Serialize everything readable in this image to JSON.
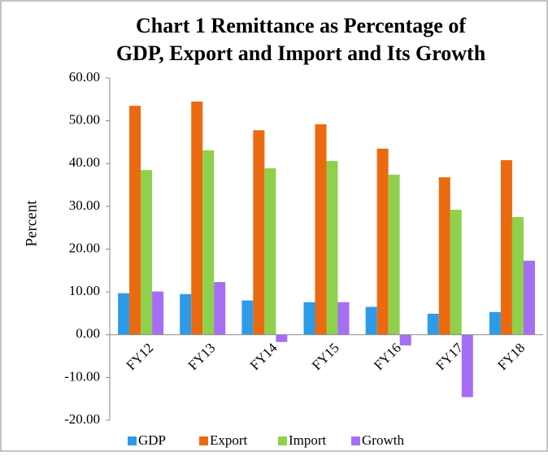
{
  "chart_data": {
    "type": "bar",
    "title": [
      "Chart 1 Remittance as Percentage of",
      "GDP, Export and Import and Its Growth"
    ],
    "y_label": "Percent",
    "categories": [
      "FY12",
      "FY13",
      "FY14",
      "FY15",
      "FY16",
      "FY17",
      "FY18"
    ],
    "series": [
      {
        "name": "GDP",
        "color": "#2e9be8",
        "values": [
          9.7,
          9.5,
          8.0,
          7.6,
          6.5,
          4.9,
          5.3
        ]
      },
      {
        "name": "Export",
        "color": "#eb6a10",
        "values": [
          53.5,
          54.5,
          47.8,
          49.2,
          43.5,
          36.8,
          40.8
        ]
      },
      {
        "name": "Import",
        "color": "#8fd14c",
        "values": [
          38.5,
          43.1,
          38.9,
          40.6,
          37.4,
          29.2,
          27.5
        ]
      },
      {
        "name": "Growth",
        "color": "#a66df5",
        "values": [
          10.1,
          12.3,
          -1.7,
          7.6,
          -2.5,
          -14.6,
          17.3
        ]
      }
    ],
    "ylim": [
      -20,
      60
    ],
    "yticks": [
      {
        "value": -20,
        "label": "-20.00"
      },
      {
        "value": -10,
        "label": "-10.00"
      },
      {
        "value": 0,
        "label": "0.00"
      },
      {
        "value": 10,
        "label": "10.00"
      },
      {
        "value": 20,
        "label": "20.00"
      },
      {
        "value": 30,
        "label": "30.00"
      },
      {
        "value": 40,
        "label": "40.00"
      },
      {
        "value": 50,
        "label": "50.00"
      },
      {
        "value": 60,
        "label": "60.00"
      }
    ],
    "grid": false,
    "legend": "bottom"
  }
}
